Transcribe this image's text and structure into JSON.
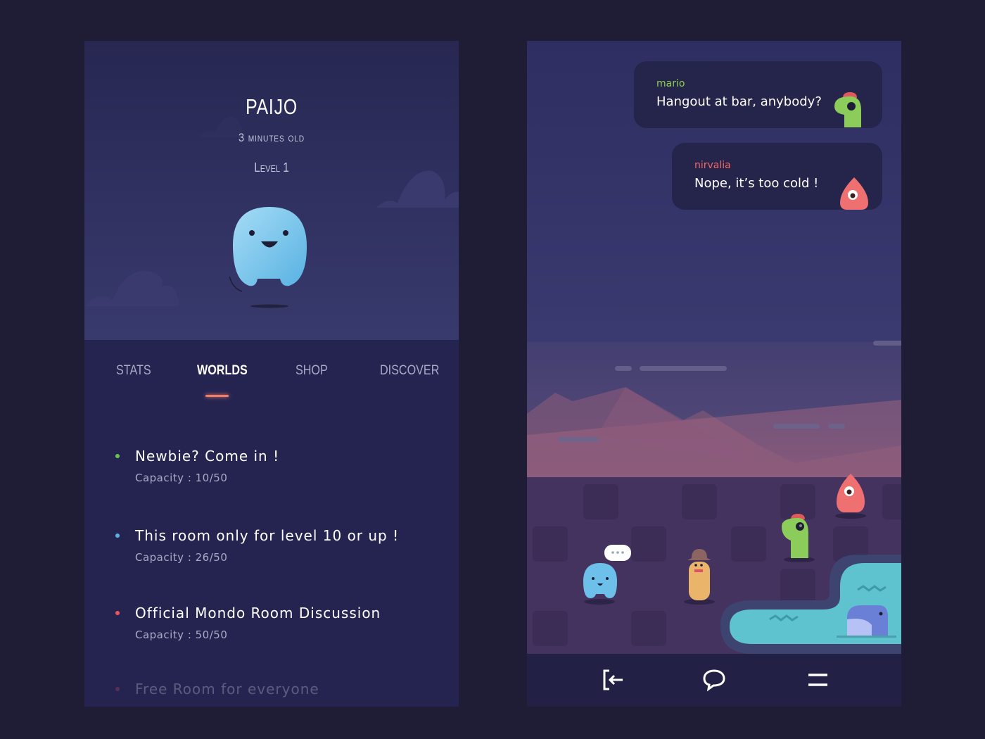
{
  "profile": {
    "name": "PAIJO",
    "age": "3 minutes old",
    "level": "Level 1"
  },
  "tabs": [
    {
      "label": "STATS"
    },
    {
      "label": "WORLDS",
      "active": true
    },
    {
      "label": "SHOP"
    },
    {
      "label": "DISCOVER"
    }
  ],
  "rooms": [
    {
      "title": "Newbie? Come in !",
      "capacity": "Capacity : 10/50",
      "status_color": "#6cc24a"
    },
    {
      "title": "This room only for level 10 or up !",
      "capacity": "Capacity : 26/50",
      "status_color": "#5ab4e0"
    },
    {
      "title": "Official Mondo Room Discussion",
      "capacity": "Capacity : 50/50",
      "status_color": "#e85a5a"
    },
    {
      "title": "Free Room for everyone",
      "capacity": "",
      "status_color": "#e85a5a"
    }
  ],
  "chat": [
    {
      "user": "mario",
      "message": "Hangout at bar, anybody?",
      "user_color": "#8fd14f"
    },
    {
      "user": "nirvalia",
      "message": "Nope, it’s too cold !",
      "user_color": "#f06a6a"
    }
  ],
  "nav": [
    {
      "icon": "exit-icon"
    },
    {
      "icon": "chat-icon"
    },
    {
      "icon": "menu-icon"
    }
  ],
  "colors": {
    "accent": "#f0806a",
    "background": "#1e1d35"
  }
}
